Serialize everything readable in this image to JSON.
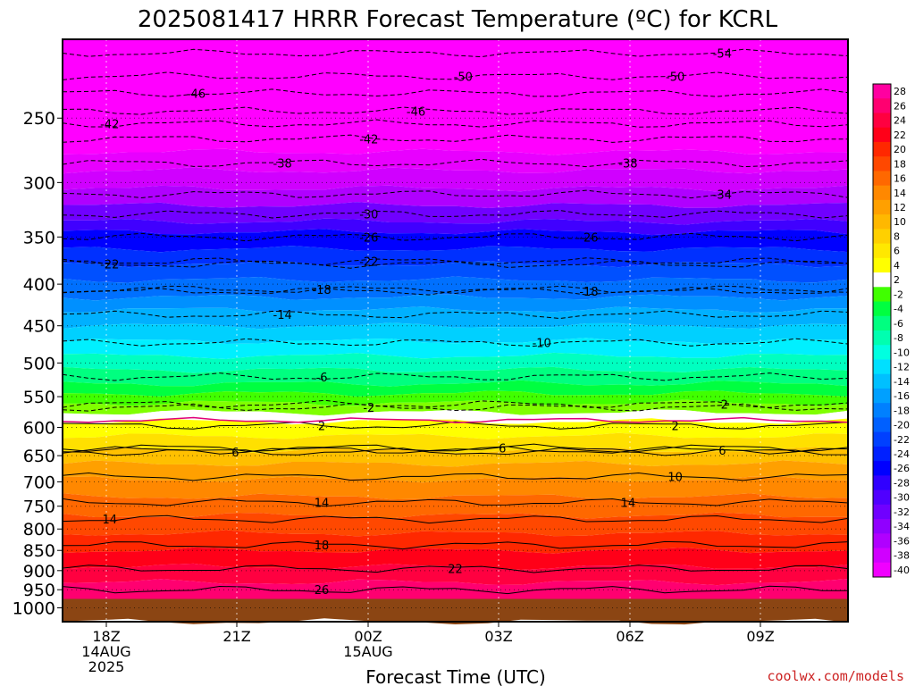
{
  "chart_data": {
    "type": "contour",
    "title": "2025081417 HRRR Forecast Temperature (ºC) for KCRL",
    "xlabel": "Forecast Time (UTC)",
    "ylabel": "",
    "credit": "coolwx.com/models",
    "y_axis": {
      "unit": "hPa",
      "scale": "log-pressure (inverted)",
      "range": [
        1040,
        200
      ],
      "ticks": [
        "250",
        "300",
        "350",
        "400",
        "450",
        "500",
        "550",
        "600",
        "650",
        "700",
        "750",
        "800",
        "850",
        "900",
        "950",
        "1000"
      ]
    },
    "x_axis": {
      "range_hours_start": "2025-08-14 16:20Z",
      "range_hours_end": "2025-08-15 11:00Z",
      "ticks": [
        {
          "lines": [
            "18Z",
            "14AUG",
            "2025"
          ],
          "hour": "18Z"
        },
        {
          "lines": [
            "21Z"
          ],
          "hour": "21Z"
        },
        {
          "lines": [
            "00Z",
            "15AUG"
          ],
          "hour": "00Z"
        },
        {
          "lines": [
            "03Z"
          ],
          "hour": "03Z"
        },
        {
          "lines": [
            "06Z"
          ],
          "hour": "06Z"
        },
        {
          "lines": [
            "09Z"
          ],
          "hour": "09Z"
        }
      ]
    },
    "colorbar": {
      "labels": [
        "28",
        "26",
        "24",
        "22",
        "20",
        "18",
        "16",
        "14",
        "12",
        "10",
        "8",
        "6",
        "4",
        "2",
        "-2",
        "-4",
        "-6",
        "-8",
        "-10",
        "-12",
        "-14",
        "-16",
        "-18",
        "-20",
        "-22",
        "-24",
        "-26",
        "-28",
        "-30",
        "-32",
        "-34",
        "-36",
        "-38",
        "-40"
      ],
      "colors": [
        "#ff00a0",
        "#ff0070",
        "#ff0040",
        "#ff0018",
        "#ff2800",
        "#ff4800",
        "#ff6800",
        "#ff8800",
        "#ffa000",
        "#ffb800",
        "#ffd000",
        "#ffe800",
        "#ffff00",
        "#ffffff",
        "#40ff00",
        "#00ff40",
        "#00ff80",
        "#00ffb0",
        "#00ffe0",
        "#00e0ff",
        "#00c0ff",
        "#00a0ff",
        "#0080ff",
        "#0060ff",
        "#0040ff",
        "#0020ff",
        "#0000ff",
        "#3000ff",
        "#5000ff",
        "#7000ff",
        "#9000ff",
        "#b000ff",
        "#d000ff",
        "#f000ff"
      ]
    },
    "bands": [
      {
        "p_top": 200,
        "p_bot": 275,
        "color": "#ff00ff"
      },
      {
        "p_top": 275,
        "p_bot": 290,
        "color": "#e800ff"
      },
      {
        "p_top": 290,
        "p_bot": 305,
        "color": "#d000ff"
      },
      {
        "p_top": 305,
        "p_bot": 320,
        "color": "#b000ff"
      },
      {
        "p_top": 320,
        "p_bot": 335,
        "color": "#7000ff"
      },
      {
        "p_top": 335,
        "p_bot": 345,
        "color": "#4000ff"
      },
      {
        "p_top": 345,
        "p_bot": 362,
        "color": "#0000ff"
      },
      {
        "p_top": 362,
        "p_bot": 378,
        "color": "#0030ff"
      },
      {
        "p_top": 378,
        "p_bot": 395,
        "color": "#0050ff"
      },
      {
        "p_top": 395,
        "p_bot": 415,
        "color": "#0070ff"
      },
      {
        "p_top": 415,
        "p_bot": 430,
        "color": "#0090ff"
      },
      {
        "p_top": 430,
        "p_bot": 450,
        "color": "#00b0ff"
      },
      {
        "p_top": 450,
        "p_bot": 470,
        "color": "#00d0ff"
      },
      {
        "p_top": 470,
        "p_bot": 490,
        "color": "#00f0ff"
      },
      {
        "p_top": 490,
        "p_bot": 510,
        "color": "#00ffc0"
      },
      {
        "p_top": 510,
        "p_bot": 530,
        "color": "#00ff80"
      },
      {
        "p_top": 530,
        "p_bot": 545,
        "color": "#00ff40"
      },
      {
        "p_top": 545,
        "p_bot": 560,
        "color": "#40ff00"
      },
      {
        "p_top": 560,
        "p_bot": 575,
        "color": "#80ff00"
      },
      {
        "p_top": 575,
        "p_bot": 590,
        "color": "#ffffff"
      },
      {
        "p_top": 590,
        "p_bot": 615,
        "color": "#ffff00"
      },
      {
        "p_top": 615,
        "p_bot": 640,
        "color": "#ffe000"
      },
      {
        "p_top": 640,
        "p_bot": 665,
        "color": "#ffc000"
      },
      {
        "p_top": 665,
        "p_bot": 695,
        "color": "#ffa000"
      },
      {
        "p_top": 695,
        "p_bot": 730,
        "color": "#ff8800"
      },
      {
        "p_top": 730,
        "p_bot": 770,
        "color": "#ff6800"
      },
      {
        "p_top": 770,
        "p_bot": 810,
        "color": "#ff4800"
      },
      {
        "p_top": 810,
        "p_bot": 850,
        "color": "#ff2800"
      },
      {
        "p_top": 850,
        "p_bot": 890,
        "color": "#ff0018"
      },
      {
        "p_top": 890,
        "p_bot": 930,
        "color": "#ff0040"
      },
      {
        "p_top": 930,
        "p_bot": 975,
        "color": "#ff0070"
      },
      {
        "p_top": 975,
        "p_bot": 1040,
        "color": "#8b4513"
      }
    ],
    "contours": [
      {
        "value": "-54",
        "p": 208,
        "label_x_frac": 0.84,
        "style": "dashed"
      },
      {
        "value": "-50",
        "p": 222,
        "label_x_frac": 0.51,
        "style": "dashed"
      },
      {
        "value": "-50",
        "p": 222,
        "label_x_frac": 0.78,
        "style": "dashed"
      },
      {
        "value": "-46",
        "p": 233,
        "label_x_frac": 0.17,
        "style": "dashed"
      },
      {
        "value": "-46",
        "p": 245,
        "label_x_frac": 0.45,
        "style": "dashed"
      },
      {
        "value": "-42",
        "p": 254,
        "label_x_frac": 0.06,
        "style": "dashed"
      },
      {
        "value": "-42",
        "p": 265,
        "label_x_frac": 0.39,
        "style": "dashed"
      },
      {
        "value": "-38",
        "p": 284,
        "label_x_frac": 0.28,
        "style": "dashed"
      },
      {
        "value": "-38",
        "p": 284,
        "label_x_frac": 0.72,
        "style": "dashed"
      },
      {
        "value": "-34",
        "p": 310,
        "label_x_frac": 0.84,
        "style": "dashed"
      },
      {
        "value": "-30",
        "p": 328,
        "label_x_frac": 0.39,
        "style": "dashed"
      },
      {
        "value": "-26",
        "p": 350,
        "label_x_frac": 0.39,
        "style": "dashed"
      },
      {
        "value": "-26",
        "p": 350,
        "label_x_frac": 0.67,
        "style": "dashed"
      },
      {
        "value": "-22",
        "p": 378,
        "label_x_frac": 0.06,
        "style": "dashed"
      },
      {
        "value": "-22",
        "p": 375,
        "label_x_frac": 0.39,
        "style": "dashed"
      },
      {
        "value": "-18",
        "p": 406,
        "label_x_frac": 0.33,
        "style": "dashed"
      },
      {
        "value": "-18",
        "p": 408,
        "label_x_frac": 0.67,
        "style": "dashed"
      },
      {
        "value": "-14",
        "p": 436,
        "label_x_frac": 0.28,
        "style": "dashed"
      },
      {
        "value": "-10",
        "p": 472,
        "label_x_frac": 0.61,
        "style": "dashed"
      },
      {
        "value": "-6",
        "p": 520,
        "label_x_frac": 0.33,
        "style": "dashed"
      },
      {
        "value": "-2",
        "p": 567,
        "label_x_frac": 0.39,
        "style": "dashed"
      },
      {
        "value": "-2",
        "p": 562,
        "label_x_frac": 0.84,
        "style": "dashed"
      },
      {
        "value": "2",
        "p": 597,
        "label_x_frac": 0.33,
        "style": "solid"
      },
      {
        "value": "2",
        "p": 597,
        "label_x_frac": 0.78,
        "style": "solid"
      },
      {
        "value": "6",
        "p": 643,
        "label_x_frac": 0.22,
        "style": "solid"
      },
      {
        "value": "6",
        "p": 636,
        "label_x_frac": 0.56,
        "style": "solid"
      },
      {
        "value": "6",
        "p": 640,
        "label_x_frac": 0.84,
        "style": "solid"
      },
      {
        "value": "10",
        "p": 690,
        "label_x_frac": 0.78,
        "style": "solid"
      },
      {
        "value": "14",
        "p": 742,
        "label_x_frac": 0.33,
        "style": "solid"
      },
      {
        "value": "14",
        "p": 742,
        "label_x_frac": 0.72,
        "style": "solid"
      },
      {
        "value": "14",
        "p": 778,
        "label_x_frac": 0.06,
        "style": "solid"
      },
      {
        "value": "18",
        "p": 837,
        "label_x_frac": 0.33,
        "style": "solid"
      },
      {
        "value": "22",
        "p": 895,
        "label_x_frac": 0.5,
        "style": "solid"
      },
      {
        "value": "26",
        "p": 950,
        "label_x_frac": 0.33,
        "style": "solid"
      }
    ],
    "colors": {
      "contour": "#000000",
      "zero_line": "#e0007a",
      "ground": "#8b4513",
      "credit": "#cc2222"
    }
  }
}
